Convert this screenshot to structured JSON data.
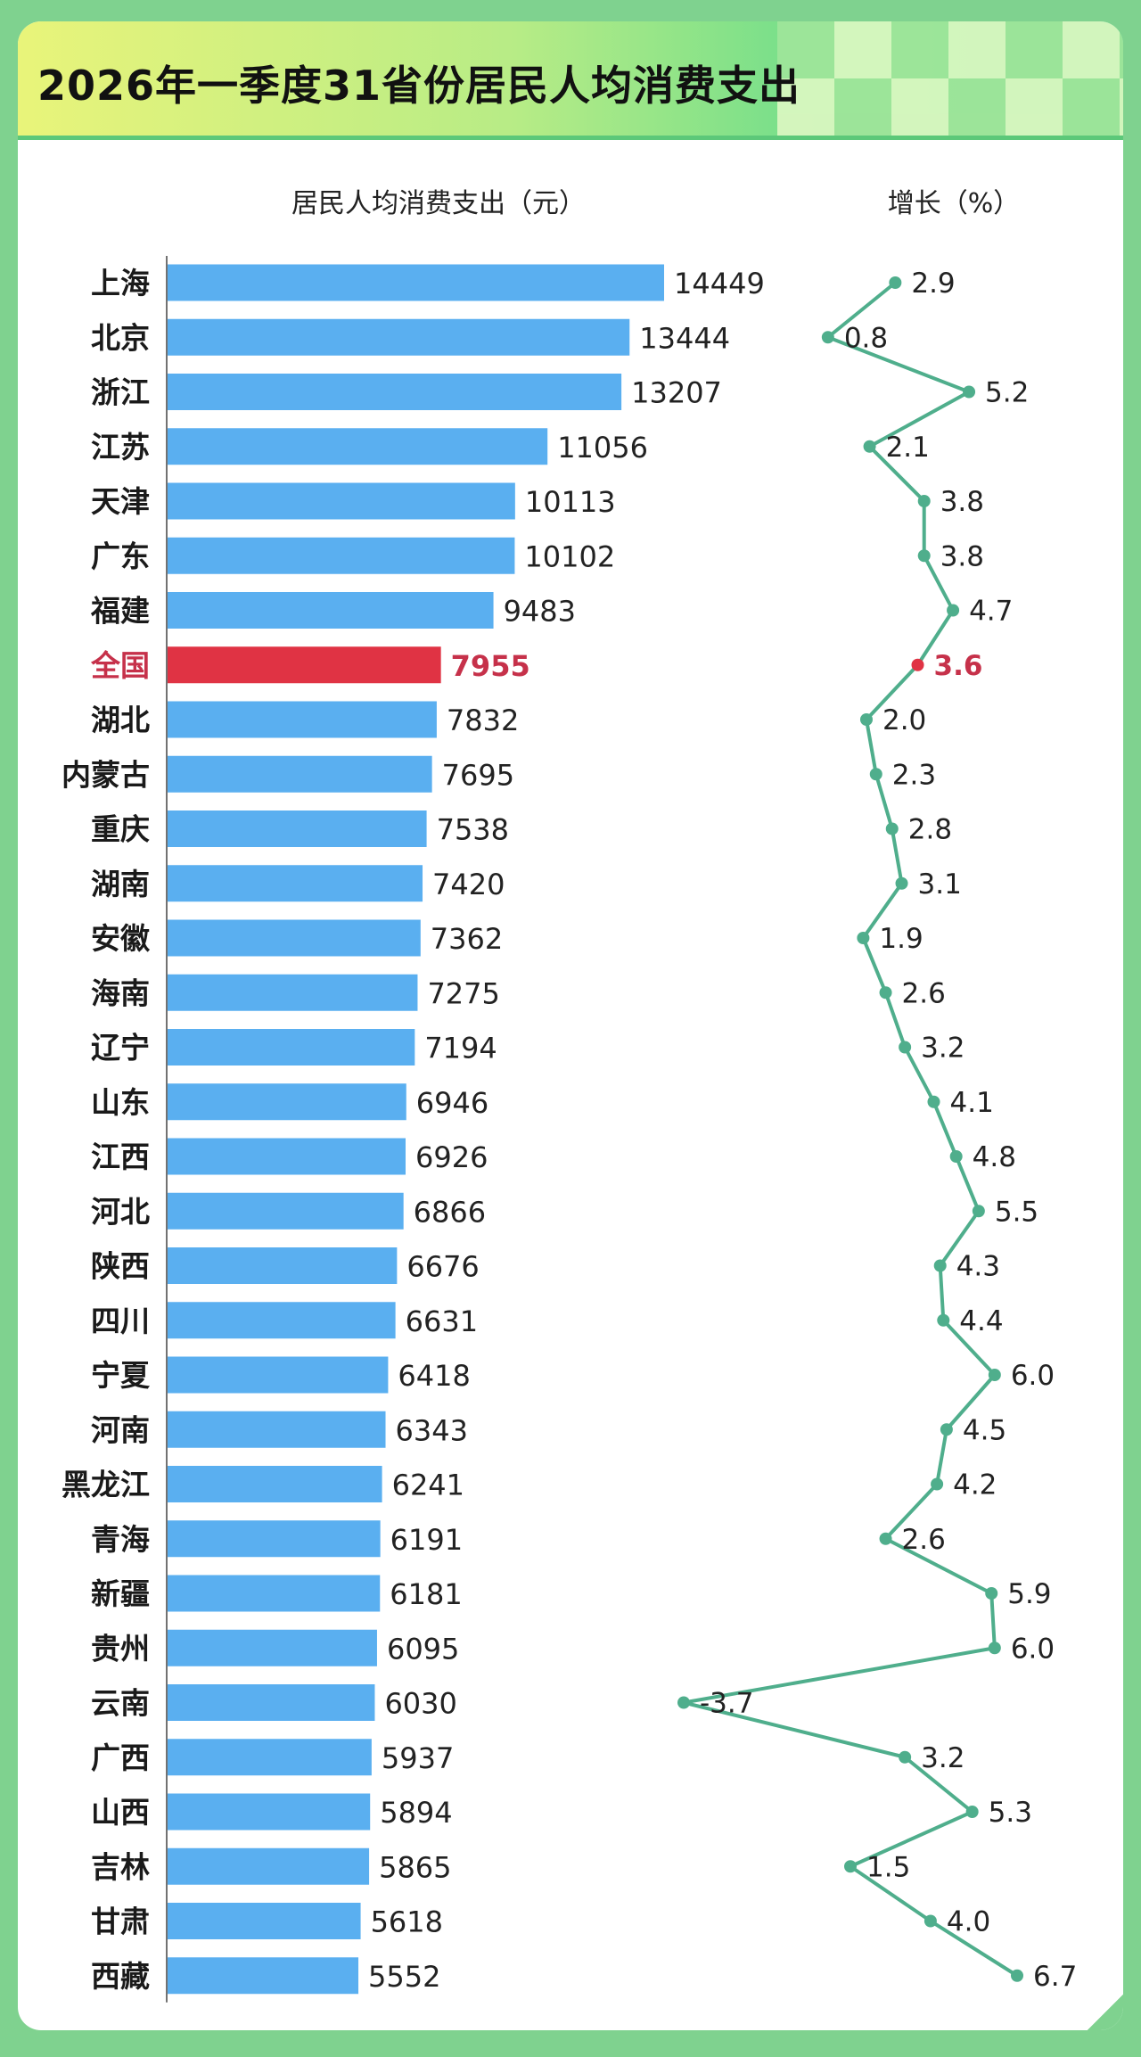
{
  "title": "2026年一季度31省份居民人均消费支出",
  "colors": {
    "bar": "#5aaff0",
    "bar_highlight": "#e03344",
    "line": "#4fae8c",
    "highlight_text": "#c6314a",
    "header_start": "#e9f47a",
    "header_end": "#5fd88c",
    "frame": "#7fd28f"
  },
  "chart_data": [
    {
      "type": "bar",
      "orientation": "horizontal",
      "title": "居民人均消费支出（元）",
      "categories": [
        "上海",
        "北京",
        "浙江",
        "江苏",
        "天津",
        "广东",
        "福建",
        "全国",
        "湖北",
        "内蒙古",
        "重庆",
        "湖南",
        "安徽",
        "海南",
        "辽宁",
        "山东",
        "江西",
        "河北",
        "陕西",
        "四川",
        "宁夏",
        "河南",
        "黑龙江",
        "青海",
        "新疆",
        "贵州",
        "云南",
        "广西",
        "山西",
        "吉林",
        "甘肃",
        "西藏"
      ],
      "values": [
        14449,
        13444,
        13207,
        11056,
        10113,
        10102,
        9483,
        7955,
        7832,
        7695,
        7538,
        7420,
        7362,
        7275,
        7194,
        6946,
        6926,
        6866,
        6676,
        6631,
        6418,
        6343,
        6241,
        6191,
        6181,
        6095,
        6030,
        5937,
        5894,
        5865,
        5618,
        5552
      ],
      "value_labels": [
        "14449",
        "13444",
        "13207",
        "11056",
        "10113",
        "10102",
        "9483",
        "7955",
        "7832",
        "7695",
        "7538",
        "7420",
        "7362",
        "7275",
        "7194",
        "6946",
        "6926",
        "6866",
        "6676",
        "6631",
        "6418",
        "6343",
        "6241",
        "6191",
        "6181",
        "6095",
        "6030",
        "5937",
        "5894",
        "5865",
        "5618",
        "5552"
      ],
      "highlight": "全国",
      "xlim": [
        0,
        14449
      ]
    },
    {
      "type": "line",
      "orientation": "vertical",
      "title": "增长（%）",
      "categories": [
        "上海",
        "北京",
        "浙江",
        "江苏",
        "天津",
        "广东",
        "福建",
        "全国",
        "湖北",
        "内蒙古",
        "重庆",
        "湖南",
        "安徽",
        "海南",
        "辽宁",
        "山东",
        "江西",
        "河北",
        "陕西",
        "四川",
        "宁夏",
        "河南",
        "黑龙江",
        "青海",
        "新疆",
        "贵州",
        "云南",
        "广西",
        "山西",
        "吉林",
        "甘肃",
        "西藏"
      ],
      "values": [
        2.9,
        0.8,
        5.2,
        2.1,
        3.8,
        3.8,
        4.7,
        3.6,
        2.0,
        2.3,
        2.8,
        3.1,
        1.9,
        2.6,
        3.2,
        4.1,
        4.8,
        5.5,
        4.3,
        4.4,
        6.0,
        4.5,
        4.2,
        2.6,
        5.9,
        6.0,
        -3.7,
        3.2,
        5.3,
        1.5,
        4.0,
        6.7
      ],
      "value_labels": [
        "2.9",
        "0.8",
        "5.2",
        "2.1",
        "3.8",
        "3.8",
        "4.7",
        "3.6",
        "2.0",
        "2.3",
        "2.8",
        "3.1",
        "1.9",
        "2.6",
        "3.2",
        "4.1",
        "4.8",
        "5.5",
        "4.3",
        "4.4",
        "6.0",
        "4.5",
        "4.2",
        "2.6",
        "5.9",
        "6.0",
        "-3.7",
        "3.2",
        "5.3",
        "1.5",
        "4.0",
        "6.7"
      ],
      "highlight": "全国",
      "xlim": [
        -3.7,
        6.7
      ]
    }
  ]
}
